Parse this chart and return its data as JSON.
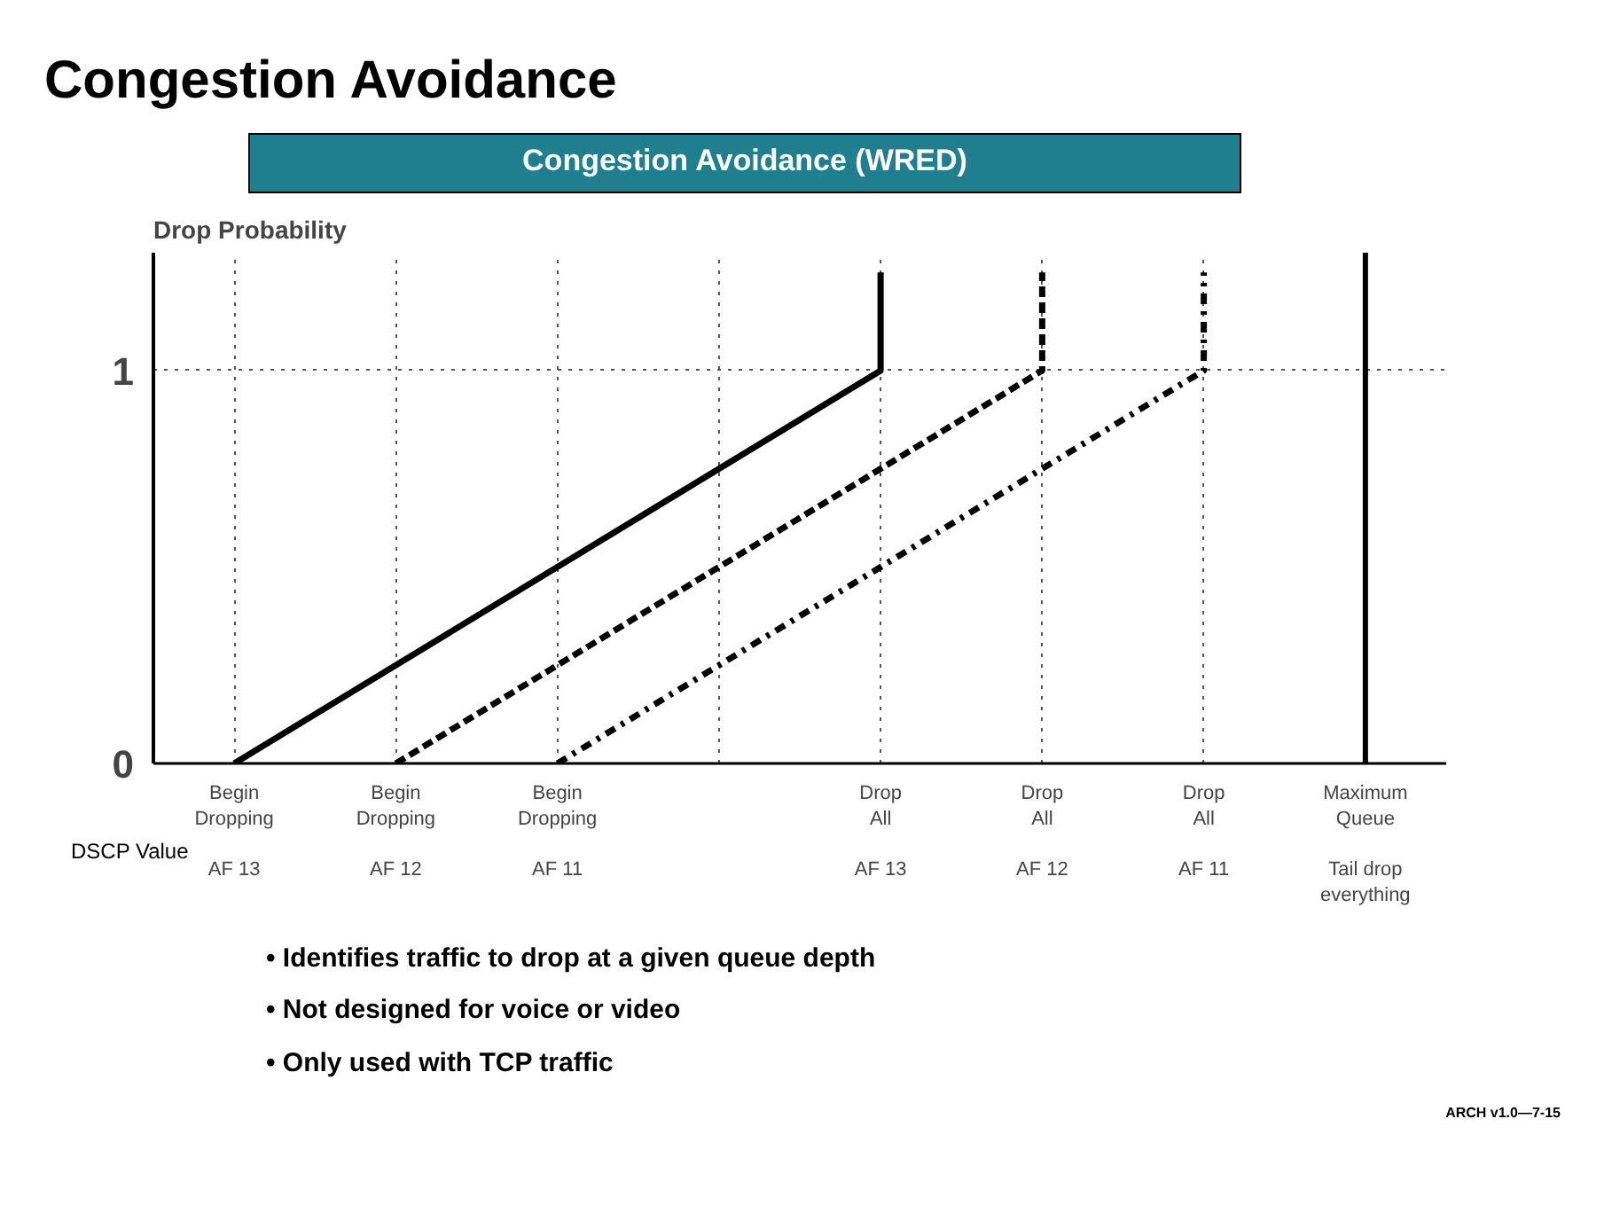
{
  "chart_data": {
    "type": "line",
    "title": "Congestion Avoidance",
    "subtitle": "Congestion Avoidance (WRED)",
    "ylabel": "Drop Probability",
    "categories": [
      "Begin\nDropping\n\nAF 13",
      "Begin\nDropping\n\nAF 12",
      "Begin\nDropping\n\nAF 11",
      null,
      "Drop\nAll\n\nAF 13",
      "Drop\nAll\n\nAF 12",
      "Drop\nAll\n\nAF 11",
      "Maximum\nQueue\n\nTail drop\neverything"
    ],
    "series": [
      {
        "color": "#000000",
        "line_style": "solid",
        "x": [
          "Begin\nDropping\n\nAF 13",
          "Drop\nAll\n\nAF 13",
          "Drop\nAll\n\nAF 13"
        ],
        "values": [
          0,
          1,
          1.25
        ]
      },
      {
        "color": "#000000",
        "line_style": "dashed",
        "x": [
          "Begin\nDropping\n\nAF 12",
          "Drop\nAll\n\nAF 12",
          "Drop\nAll\n\nAF 12"
        ],
        "values": [
          0,
          1,
          1.25
        ]
      },
      {
        "color": "#000000",
        "line_style": "dashdot",
        "x": [
          "Begin\nDropping\n\nAF 11",
          "Drop\nAll\n\nAF 11",
          "Drop\nAll\n\nAF 11"
        ],
        "values": [
          0,
          1,
          1.25
        ]
      }
    ],
    "ylim": [
      0,
      1.3
    ],
    "yticks": [
      0,
      1
    ],
    "grid": true,
    "marker": "none",
    "ref_lines": [
      {
        "axis": "x",
        "value": "Maximum\nQueue\n\nTail drop\neverything",
        "color": "#000000",
        "line_style": "solid"
      }
    ],
    "annotations": [
      "DSCP Value",
      "• Identifies traffic to drop at a given queue depth",
      "• Not designed for voice or video",
      "• Only used with TCP traffic",
      "ARCH v1.0—7-15"
    ]
  }
}
